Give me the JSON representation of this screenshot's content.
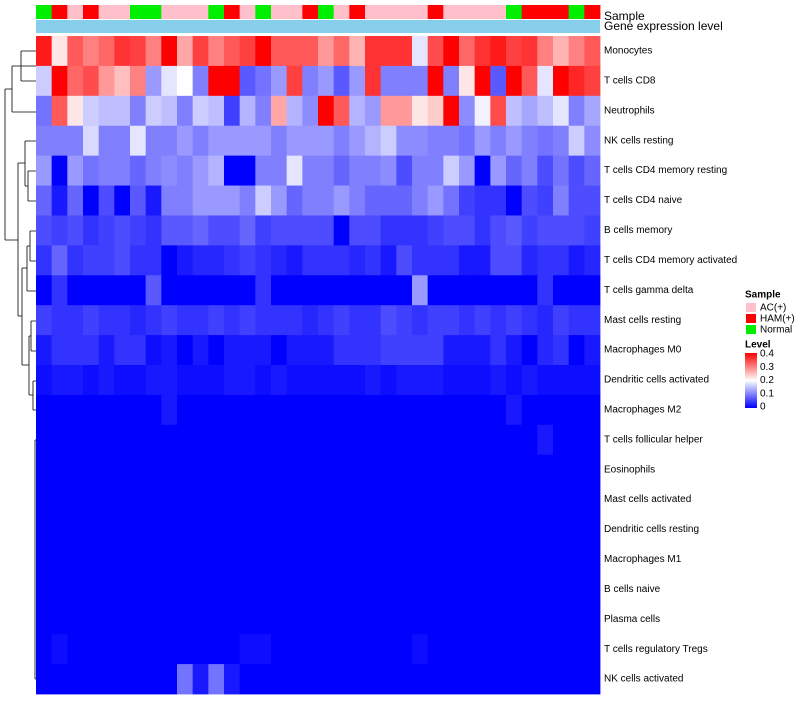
{
  "chart_data": {
    "type": "heatmap",
    "title": "",
    "column_annotations": {
      "sample_label": "Sample",
      "expression_label": "Gene expression level",
      "sample_groups": [
        "Normal",
        "HAM(+)",
        "AC(+)",
        "HAM(+)",
        "AC(+)",
        "AC(+)",
        "Normal",
        "Normal",
        "AC(+)",
        "AC(+)",
        "AC(+)",
        "Normal",
        "HAM(+)",
        "AC(+)",
        "Normal",
        "AC(+)",
        "AC(+)",
        "HAM(+)",
        "Normal",
        "AC(+)",
        "HAM(+)",
        "AC(+)",
        "AC(+)",
        "AC(+)",
        "AC(+)",
        "HAM(+)",
        "AC(+)",
        "AC(+)",
        "AC(+)",
        "AC(+)",
        "Normal",
        "HAM(+)",
        "HAM(+)",
        "HAM(+)",
        "Normal",
        "HAM(+)"
      ]
    },
    "rows": [
      "Monocytes",
      "T cells CD8",
      "Neutrophils",
      "NK cells resting",
      "T cells CD4 memory resting",
      "T cells CD4 naive",
      "B cells memory",
      "T cells CD4 memory activated",
      "T cells gamma delta",
      "Mast cells resting",
      "Macrophages M0",
      "Dendritic cells activated",
      "Macrophages M2",
      "T cells follicular helper",
      "Eosinophils",
      "Mast cells activated",
      "Dendritic cells resting",
      "Macrophages M1",
      "B cells naive",
      "Plasma cells",
      "T cells regulatory  Tregs",
      "NK cells activated"
    ],
    "values": [
      [
        0.38,
        0.22,
        0.33,
        0.3,
        0.32,
        0.36,
        0.35,
        0.3,
        0.4,
        0.27,
        0.35,
        0.3,
        0.33,
        0.35,
        0.4,
        0.33,
        0.33,
        0.33,
        0.28,
        0.32,
        0.26,
        0.36,
        0.36,
        0.36,
        0.18,
        0.34,
        0.4,
        0.32,
        0.36,
        0.38,
        0.35,
        0.36,
        0.3,
        0.26,
        0.3,
        0.33
      ],
      [
        0.16,
        0.4,
        0.32,
        0.34,
        0.28,
        0.25,
        0.3,
        0.12,
        0.18,
        0.2,
        0.1,
        0.4,
        0.4,
        0.07,
        0.09,
        0.12,
        0.35,
        0.1,
        0.12,
        0.07,
        0.12,
        0.36,
        0.1,
        0.1,
        0.1,
        0.4,
        0.1,
        0.22,
        0.4,
        0.07,
        0.4,
        0.33,
        0.18,
        0.4,
        0.37,
        0.35
      ],
      [
        0.09,
        0.33,
        0.22,
        0.16,
        0.15,
        0.15,
        0.1,
        0.16,
        0.15,
        0.1,
        0.16,
        0.15,
        0.05,
        0.14,
        0.1,
        0.27,
        0.14,
        0.11,
        0.4,
        0.33,
        0.14,
        0.12,
        0.28,
        0.28,
        0.22,
        0.24,
        0.4,
        0.11,
        0.19,
        0.34,
        0.15,
        0.13,
        0.15,
        0.18,
        0.1,
        0.13
      ],
      [
        0.1,
        0.1,
        0.1,
        0.17,
        0.1,
        0.1,
        0.18,
        0.1,
        0.1,
        0.12,
        0.1,
        0.12,
        0.12,
        0.12,
        0.12,
        0.1,
        0.12,
        0.12,
        0.12,
        0.1,
        0.12,
        0.14,
        0.16,
        0.11,
        0.11,
        0.1,
        0.1,
        0.09,
        0.12,
        0.1,
        0.12,
        0.1,
        0.09,
        0.1,
        0.16,
        0.11
      ],
      [
        0.12,
        0.0,
        0.12,
        0.09,
        0.1,
        0.1,
        0.08,
        0.1,
        0.11,
        0.1,
        0.12,
        0.14,
        0.0,
        0.0,
        0.1,
        0.1,
        0.18,
        0.1,
        0.1,
        0.08,
        0.1,
        0.1,
        0.11,
        0.06,
        0.1,
        0.1,
        0.16,
        0.12,
        0.0,
        0.12,
        0.08,
        0.1,
        0.06,
        0.09,
        0.06,
        0.08
      ],
      [
        0.08,
        0.02,
        0.08,
        0.0,
        0.06,
        0.0,
        0.07,
        0.02,
        0.1,
        0.1,
        0.12,
        0.12,
        0.12,
        0.1,
        0.16,
        0.12,
        0.08,
        0.1,
        0.1,
        0.12,
        0.1,
        0.08,
        0.08,
        0.08,
        0.1,
        0.12,
        0.09,
        0.05,
        0.04,
        0.04,
        0.0,
        0.06,
        0.05,
        0.1,
        0.06,
        0.06
      ],
      [
        0.06,
        0.05,
        0.06,
        0.04,
        0.05,
        0.06,
        0.05,
        0.04,
        0.07,
        0.07,
        0.08,
        0.06,
        0.06,
        0.08,
        0.05,
        0.06,
        0.06,
        0.06,
        0.06,
        0.0,
        0.06,
        0.06,
        0.04,
        0.04,
        0.04,
        0.05,
        0.06,
        0.06,
        0.04,
        0.06,
        0.07,
        0.05,
        0.06,
        0.06,
        0.06,
        0.05
      ],
      [
        0.04,
        0.08,
        0.04,
        0.05,
        0.05,
        0.06,
        0.04,
        0.04,
        0.0,
        0.02,
        0.03,
        0.03,
        0.04,
        0.05,
        0.04,
        0.03,
        0.02,
        0.04,
        0.04,
        0.04,
        0.03,
        0.04,
        0.02,
        0.06,
        0.04,
        0.04,
        0.04,
        0.02,
        0.02,
        0.06,
        0.06,
        0.03,
        0.04,
        0.04,
        0.02,
        0.03
      ],
      [
        0.0,
        0.04,
        0.0,
        0.0,
        0.0,
        0.0,
        0.0,
        0.07,
        0.0,
        0.0,
        0.0,
        0.0,
        0.0,
        0.0,
        0.04,
        0.0,
        0.0,
        0.0,
        0.0,
        0.0,
        0.0,
        0.0,
        0.0,
        0.0,
        0.12,
        0.0,
        0.0,
        0.0,
        0.0,
        0.0,
        0.0,
        0.0,
        0.04,
        0.0,
        0.0,
        0.0
      ],
      [
        0.05,
        0.04,
        0.04,
        0.05,
        0.04,
        0.04,
        0.03,
        0.04,
        0.05,
        0.04,
        0.04,
        0.05,
        0.04,
        0.05,
        0.04,
        0.04,
        0.04,
        0.03,
        0.04,
        0.05,
        0.04,
        0.04,
        0.06,
        0.05,
        0.04,
        0.05,
        0.05,
        0.04,
        0.05,
        0.04,
        0.05,
        0.04,
        0.03,
        0.05,
        0.04,
        0.04
      ],
      [
        0.02,
        0.04,
        0.04,
        0.04,
        0.02,
        0.04,
        0.04,
        0.01,
        0.02,
        0.0,
        0.02,
        0.0,
        0.02,
        0.02,
        0.02,
        0.0,
        0.02,
        0.02,
        0.02,
        0.04,
        0.04,
        0.04,
        0.05,
        0.05,
        0.05,
        0.05,
        0.02,
        0.02,
        0.02,
        0.04,
        0.02,
        0.0,
        0.03,
        0.04,
        0.0,
        0.02
      ],
      [
        0.01,
        0.02,
        0.02,
        0.01,
        0.02,
        0.01,
        0.01,
        0.02,
        0.02,
        0.01,
        0.01,
        0.01,
        0.02,
        0.02,
        0.01,
        0.02,
        0.01,
        0.01,
        0.01,
        0.01,
        0.01,
        0.02,
        0.01,
        0.02,
        0.02,
        0.02,
        0.01,
        0.01,
        0.01,
        0.02,
        0.01,
        0.02,
        0.01,
        0.01,
        0.01,
        0.01
      ],
      [
        0.0,
        0.0,
        0.0,
        0.0,
        0.0,
        0.0,
        0.0,
        0.0,
        0.02,
        0.0,
        0.0,
        0.0,
        0.0,
        0.0,
        0.0,
        0.0,
        0.0,
        0.0,
        0.0,
        0.0,
        0.0,
        0.0,
        0.0,
        0.0,
        0.0,
        0.0,
        0.0,
        0.0,
        0.0,
        0.0,
        0.02,
        0.0,
        0.0,
        0.0,
        0.0,
        0.0
      ],
      [
        0.0,
        0.0,
        0.0,
        0.0,
        0.0,
        0.0,
        0.0,
        0.0,
        0.0,
        0.0,
        0.0,
        0.0,
        0.0,
        0.0,
        0.0,
        0.0,
        0.0,
        0.0,
        0.0,
        0.0,
        0.0,
        0.0,
        0.0,
        0.0,
        0.0,
        0.0,
        0.0,
        0.0,
        0.0,
        0.0,
        0.0,
        0.0,
        0.02,
        0.0,
        0.0,
        0.0
      ],
      [
        0.0,
        0.0,
        0.0,
        0.0,
        0.0,
        0.0,
        0.0,
        0.0,
        0.0,
        0.0,
        0.0,
        0.0,
        0.0,
        0.0,
        0.0,
        0.0,
        0.0,
        0.0,
        0.0,
        0.0,
        0.0,
        0.0,
        0.0,
        0.0,
        0.0,
        0.0,
        0.0,
        0.0,
        0.0,
        0.0,
        0.0,
        0.0,
        0.0,
        0.0,
        0.0,
        0.0
      ],
      [
        0.0,
        0.0,
        0.0,
        0.0,
        0.0,
        0.0,
        0.0,
        0.0,
        0.0,
        0.0,
        0.0,
        0.0,
        0.0,
        0.0,
        0.0,
        0.0,
        0.0,
        0.0,
        0.0,
        0.0,
        0.0,
        0.0,
        0.0,
        0.0,
        0.0,
        0.0,
        0.0,
        0.0,
        0.0,
        0.0,
        0.0,
        0.0,
        0.0,
        0.0,
        0.0,
        0.0
      ],
      [
        0.0,
        0.0,
        0.0,
        0.0,
        0.0,
        0.0,
        0.0,
        0.0,
        0.0,
        0.0,
        0.0,
        0.0,
        0.0,
        0.0,
        0.0,
        0.0,
        0.0,
        0.0,
        0.0,
        0.0,
        0.0,
        0.0,
        0.0,
        0.0,
        0.0,
        0.0,
        0.0,
        0.0,
        0.0,
        0.0,
        0.0,
        0.0,
        0.0,
        0.0,
        0.0,
        0.0
      ],
      [
        0.0,
        0.0,
        0.0,
        0.0,
        0.0,
        0.0,
        0.0,
        0.0,
        0.0,
        0.0,
        0.0,
        0.0,
        0.0,
        0.0,
        0.0,
        0.0,
        0.0,
        0.0,
        0.0,
        0.0,
        0.0,
        0.0,
        0.0,
        0.0,
        0.0,
        0.0,
        0.0,
        0.0,
        0.0,
        0.0,
        0.0,
        0.0,
        0.0,
        0.0,
        0.0,
        0.0
      ],
      [
        0.0,
        0.0,
        0.0,
        0.0,
        0.0,
        0.0,
        0.0,
        0.0,
        0.0,
        0.0,
        0.0,
        0.0,
        0.0,
        0.0,
        0.0,
        0.0,
        0.0,
        0.0,
        0.0,
        0.0,
        0.0,
        0.0,
        0.0,
        0.0,
        0.0,
        0.0,
        0.0,
        0.0,
        0.0,
        0.0,
        0.0,
        0.0,
        0.0,
        0.0,
        0.0,
        0.0
      ],
      [
        0.0,
        0.0,
        0.0,
        0.0,
        0.0,
        0.0,
        0.0,
        0.0,
        0.0,
        0.0,
        0.0,
        0.0,
        0.0,
        0.0,
        0.0,
        0.0,
        0.0,
        0.0,
        0.0,
        0.0,
        0.0,
        0.0,
        0.0,
        0.0,
        0.0,
        0.0,
        0.0,
        0.0,
        0.0,
        0.0,
        0.0,
        0.0,
        0.0,
        0.0,
        0.0,
        0.0
      ],
      [
        0.0,
        0.01,
        0.0,
        0.0,
        0.0,
        0.0,
        0.0,
        0.0,
        0.0,
        0.0,
        0.0,
        0.0,
        0.0,
        0.01,
        0.01,
        0.0,
        0.0,
        0.0,
        0.0,
        0.0,
        0.0,
        0.0,
        0.0,
        0.0,
        0.01,
        0.0,
        0.0,
        0.0,
        0.0,
        0.0,
        0.0,
        0.0,
        0.0,
        0.0,
        0.0,
        0.0
      ],
      [
        0.0,
        0.0,
        0.0,
        0.0,
        0.0,
        0.0,
        0.0,
        0.0,
        0.0,
        0.09,
        0.02,
        0.09,
        0.02,
        0.0,
        0.0,
        0.0,
        0.0,
        0.0,
        0.0,
        0.0,
        0.0,
        0.0,
        0.0,
        0.0,
        0.0,
        0.0,
        0.0,
        0.0,
        0.0,
        0.0,
        0.0,
        0.0,
        0.0,
        0.0,
        0.0,
        0.0
      ]
    ],
    "legend": {
      "sample_title": "Sample",
      "sample_entries": [
        {
          "label": "AC(+)",
          "color": "#FFC0CB"
        },
        {
          "label": "HAM(+)",
          "color": "#FF0000"
        },
        {
          "label": "Normal",
          "color": "#00EE00"
        }
      ],
      "level_title": "Level",
      "level_ticks": [
        "0.4",
        "0.3",
        "0.2",
        "0.1",
        "0"
      ],
      "level_range": [
        0,
        0.4
      ]
    },
    "colors": {
      "low": "#0000FF",
      "mid": "#FFFFFF",
      "high": "#FF0000",
      "expression_bar": "#87CEEB"
    }
  }
}
